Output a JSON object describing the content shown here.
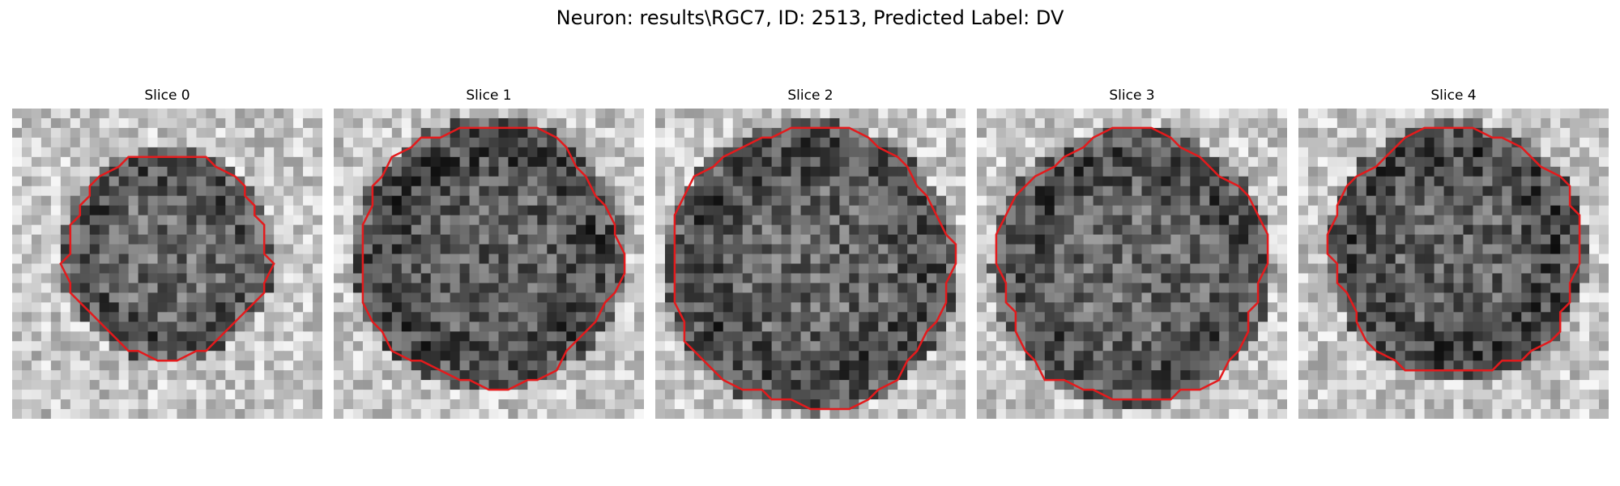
{
  "figure": {
    "title": "Neuron: results\\RGC7, ID: 2513, Predicted Label: DV"
  },
  "slices": [
    {
      "title": "Slice 0",
      "image": "grayscale-microscopy-slice-with-red-contour"
    },
    {
      "title": "Slice 1",
      "image": "grayscale-microscopy-slice-with-red-contour"
    },
    {
      "title": "Slice 2",
      "image": "grayscale-microscopy-slice-with-red-contour"
    },
    {
      "title": "Slice 3",
      "image": "grayscale-microscopy-slice-with-red-contour"
    },
    {
      "title": "Slice 4",
      "image": "grayscale-microscopy-slice-with-red-contour"
    }
  ],
  "colors": {
    "contour": "#e41a1c"
  }
}
